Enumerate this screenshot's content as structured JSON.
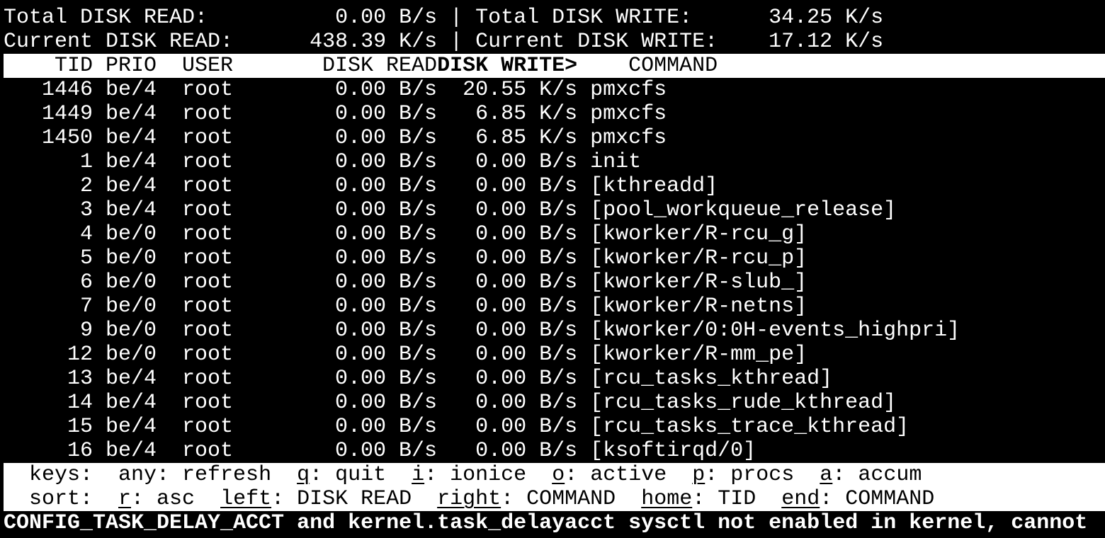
{
  "app": "iotop",
  "colors": {
    "background": "#000000",
    "foreground": "#ffffff",
    "highlight_bg": "#ffffff",
    "highlight_fg": "#000000"
  },
  "summary": {
    "separator": "|",
    "total_read_label": "Total DISK READ:",
    "total_read_value": "0.00 B/s",
    "total_write_label": "Total DISK WRITE:",
    "total_write_value": "34.25 K/s",
    "current_read_label": "Current DISK READ:",
    "current_read_value": "438.39 K/s",
    "current_write_label": "Current DISK WRITE:",
    "current_write_value": "17.12 K/s"
  },
  "table": {
    "headers": {
      "tid": "TID",
      "prio": "PRIO",
      "user": "USER",
      "read": "DISK READ",
      "write": "DISK WRITE>",
      "command": "COMMAND"
    },
    "sort_column": "DISK WRITE",
    "sort_indicator": ">",
    "rows": [
      {
        "tid": "1446",
        "prio": "be/4",
        "user": "root",
        "read": "0.00 B/s",
        "write": "20.55 K/s",
        "command": "pmxcfs"
      },
      {
        "tid": "1449",
        "prio": "be/4",
        "user": "root",
        "read": "0.00 B/s",
        "write": "6.85 K/s",
        "command": "pmxcfs"
      },
      {
        "tid": "1450",
        "prio": "be/4",
        "user": "root",
        "read": "0.00 B/s",
        "write": "6.85 K/s",
        "command": "pmxcfs"
      },
      {
        "tid": "1",
        "prio": "be/4",
        "user": "root",
        "read": "0.00 B/s",
        "write": "0.00 B/s",
        "command": "init"
      },
      {
        "tid": "2",
        "prio": "be/4",
        "user": "root",
        "read": "0.00 B/s",
        "write": "0.00 B/s",
        "command": "[kthreadd]"
      },
      {
        "tid": "3",
        "prio": "be/4",
        "user": "root",
        "read": "0.00 B/s",
        "write": "0.00 B/s",
        "command": "[pool_workqueue_release]"
      },
      {
        "tid": "4",
        "prio": "be/0",
        "user": "root",
        "read": "0.00 B/s",
        "write": "0.00 B/s",
        "command": "[kworker/R-rcu_g]"
      },
      {
        "tid": "5",
        "prio": "be/0",
        "user": "root",
        "read": "0.00 B/s",
        "write": "0.00 B/s",
        "command": "[kworker/R-rcu_p]"
      },
      {
        "tid": "6",
        "prio": "be/0",
        "user": "root",
        "read": "0.00 B/s",
        "write": "0.00 B/s",
        "command": "[kworker/R-slub_]"
      },
      {
        "tid": "7",
        "prio": "be/0",
        "user": "root",
        "read": "0.00 B/s",
        "write": "0.00 B/s",
        "command": "[kworker/R-netns]"
      },
      {
        "tid": "9",
        "prio": "be/0",
        "user": "root",
        "read": "0.00 B/s",
        "write": "0.00 B/s",
        "command": "[kworker/0:0H-events_highpri]"
      },
      {
        "tid": "12",
        "prio": "be/0",
        "user": "root",
        "read": "0.00 B/s",
        "write": "0.00 B/s",
        "command": "[kworker/R-mm_pe]"
      },
      {
        "tid": "13",
        "prio": "be/4",
        "user": "root",
        "read": "0.00 B/s",
        "write": "0.00 B/s",
        "command": "[rcu_tasks_kthread]"
      },
      {
        "tid": "14",
        "prio": "be/4",
        "user": "root",
        "read": "0.00 B/s",
        "write": "0.00 B/s",
        "command": "[rcu_tasks_rude_kthread]"
      },
      {
        "tid": "15",
        "prio": "be/4",
        "user": "root",
        "read": "0.00 B/s",
        "write": "0.00 B/s",
        "command": "[rcu_tasks_trace_kthread]"
      },
      {
        "tid": "16",
        "prio": "be/4",
        "user": "root",
        "read": "0.00 B/s",
        "write": "0.00 B/s",
        "command": "[ksoftirqd/0]"
      }
    ]
  },
  "help": {
    "colon": ":",
    "keys_label": "keys:",
    "keys": [
      {
        "key": "any",
        "desc": "refresh"
      },
      {
        "key": "q",
        "desc": "quit"
      },
      {
        "key": "i",
        "desc": "ionice"
      },
      {
        "key": "o",
        "desc": "active"
      },
      {
        "key": "p",
        "desc": "procs"
      },
      {
        "key": "a",
        "desc": "accum"
      }
    ],
    "sort_label": "sort:",
    "sort": [
      {
        "key": "r",
        "desc": "asc"
      },
      {
        "key": "left",
        "desc": "DISK READ"
      },
      {
        "key": "right",
        "desc": "COMMAND"
      },
      {
        "key": "home",
        "desc": "TID"
      },
      {
        "key": "end",
        "desc": "COMMAND"
      }
    ]
  },
  "status_bar": "CONFIG_TASK_DELAY_ACCT and kernel.task_delayacct sysctl not enabled in kernel, cannot"
}
